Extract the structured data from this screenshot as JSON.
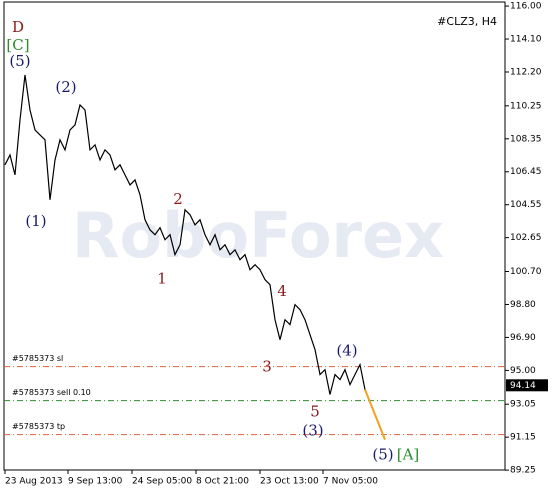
{
  "chart_data": {
    "type": "line",
    "symbol": "#CLZ3, H4",
    "watermark": "RoboForex",
    "color": "#000000",
    "x": [
      0,
      1,
      2,
      3,
      4,
      5,
      6,
      7,
      8,
      9,
      10,
      11,
      12,
      13,
      14,
      15,
      16,
      17,
      18,
      19,
      20,
      21,
      22,
      23,
      24,
      25,
      26,
      27,
      28,
      29,
      30,
      31,
      32,
      33,
      34,
      35,
      36,
      37,
      38,
      39,
      40,
      41,
      42,
      43,
      44,
      45,
      46,
      47,
      48,
      49,
      50,
      51,
      52,
      53,
      54,
      55,
      56,
      57,
      58,
      59,
      60,
      61,
      62,
      63,
      64,
      65,
      66,
      67,
      68,
      69,
      70,
      71,
      72
    ],
    "values": [
      106.85,
      107.42,
      106.27,
      109.44,
      112.03,
      110.01,
      108.86,
      108.57,
      108.29,
      104.83,
      107.13,
      108.29,
      107.71,
      108.86,
      109.15,
      110.3,
      110.01,
      107.71,
      108.0,
      107.13,
      107.71,
      107.42,
      106.56,
      106.85,
      106.27,
      105.69,
      105.98,
      105.12,
      103.68,
      103.1,
      102.82,
      103.22,
      102.53,
      102.82,
      101.67,
      102.24,
      104.26,
      103.97,
      103.39,
      103.68,
      102.82,
      102.24,
      102.82,
      101.95,
      102.24,
      101.67,
      101.95,
      101.38,
      101.67,
      100.8,
      101.09,
      100.8,
      100.23,
      99.94,
      97.92,
      96.77,
      97.92,
      97.64,
      98.79,
      98.5,
      97.92,
      97.06,
      96.2,
      94.76,
      95.04,
      93.61,
      94.76,
      94.47,
      95.04,
      94.18,
      94.76,
      95.33,
      93.89
    ],
    "xlim": [
      0,
      100
    ],
    "ylim": [
      89.2,
      116.35
    ],
    "xticks": [
      {
        "value": 0,
        "label": "23 Aug 2013"
      },
      {
        "value": 12.6,
        "label": "9 Sep 13:00"
      },
      {
        "value": 25.4,
        "label": "24 Sep 05:00"
      },
      {
        "value": 38.2,
        "label": "8 Oct 21:00"
      },
      {
        "value": 51,
        "label": "23 Oct 13:00"
      },
      {
        "value": 63.6,
        "label": "7 Nov 05:00"
      }
    ],
    "yticks": [
      {
        "value": 116,
        "label": "116.00"
      },
      {
        "value": 114.1,
        "label": "114.10"
      },
      {
        "value": 112.2,
        "label": "112.20"
      },
      {
        "value": 110.25,
        "label": "110.25"
      },
      {
        "value": 108.35,
        "label": "108.35"
      },
      {
        "value": 106.45,
        "label": "106.45"
      },
      {
        "value": 104.55,
        "label": "104.55"
      },
      {
        "value": 102.65,
        "label": "102.65"
      },
      {
        "value": 100.7,
        "label": "100.70"
      },
      {
        "value": 98.8,
        "label": "98.80"
      },
      {
        "value": 96.9,
        "label": "96.90"
      },
      {
        "value": 95,
        "label": "95.00"
      },
      {
        "value": 93.05,
        "label": "93.05"
      },
      {
        "value": 91.15,
        "label": "91.15"
      },
      {
        "value": 89.25,
        "label": "89.25"
      }
    ],
    "last_price": 94.14,
    "levels": [
      {
        "label": "#5785373 sl",
        "value": 95.22,
        "color": "#e0603a"
      },
      {
        "label": "#5785373 sell 0.10",
        "value": 93.26,
        "color": "#2e8b2e"
      },
      {
        "label": "#5785373 tp",
        "value": 91.3,
        "color": "#e0603a"
      }
    ],
    "projection": {
      "x": [
        72,
        76
      ],
      "values": [
        93.89,
        91.01
      ],
      "color": "#f5a020"
    },
    "annotations": [
      {
        "text": "D",
        "x": 2.6,
        "y": 114.73,
        "color": "#8b1a1a"
      },
      {
        "text": "[C]",
        "x": 2.6,
        "y": 113.7,
        "color": "#2e8b2e"
      },
      {
        "text": "(5)",
        "x": 3,
        "y": 112.78,
        "color": "#1a1a6e"
      },
      {
        "text": "(1)",
        "x": 6.2,
        "y": 103.56,
        "color": "#1a1a6e"
      },
      {
        "text": "(2)",
        "x": 12.2,
        "y": 111.28,
        "color": "#1a1a6e"
      },
      {
        "text": "2",
        "x": 34.6,
        "y": 104.83,
        "color": "#8b1a1a"
      },
      {
        "text": "1",
        "x": 31.4,
        "y": 100.23,
        "color": "#8b1a1a"
      },
      {
        "text": "4",
        "x": 55.4,
        "y": 99.53,
        "color": "#8b1a1a"
      },
      {
        "text": "3",
        "x": 52.4,
        "y": 95.16,
        "color": "#8b1a1a"
      },
      {
        "text": "5",
        "x": 62,
        "y": 92.57,
        "color": "#8b1a1a"
      },
      {
        "text": "(3)",
        "x": 61.6,
        "y": 91.48,
        "color": "#1a1a6e"
      },
      {
        "text": "(4)",
        "x": 68.4,
        "y": 96.08,
        "color": "#1a1a6e"
      },
      {
        "text": "(5)",
        "x": 75.6,
        "y": 90.09,
        "color": "#1a1a6e"
      },
      {
        "text": "[A]",
        "x": 80.6,
        "y": 90.09,
        "color": "#2e8b2e"
      }
    ]
  }
}
